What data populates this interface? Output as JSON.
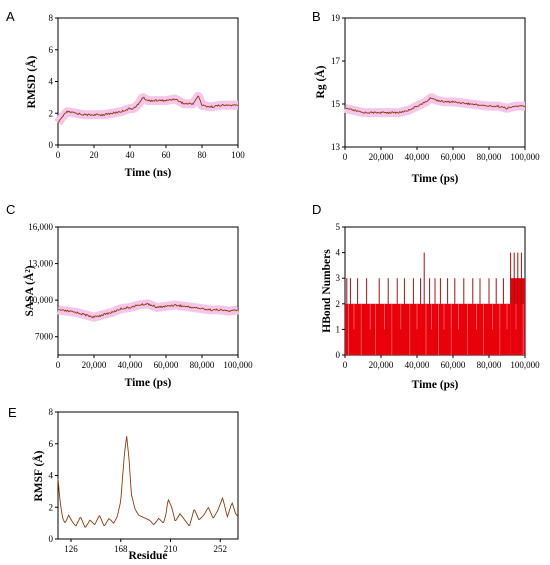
{
  "chart_data": [
    {
      "id": "A",
      "type": "line",
      "panel_label": "A",
      "xlabel": "Time (ns)",
      "ylabel": "RMSD (Å)",
      "xlim": [
        0,
        100
      ],
      "ylim": [
        0,
        8
      ],
      "xticks": [
        0,
        20,
        40,
        60,
        80,
        100
      ],
      "yticks": [
        0,
        2,
        4,
        6,
        8
      ],
      "xtick_labels": [
        "0",
        "20",
        "40",
        "60",
        "80",
        "100"
      ],
      "ytick_labels": [
        "0",
        "2",
        "4",
        "6",
        "8"
      ],
      "line_color": "#8b3a0e",
      "band_color": "#f5c6ea",
      "series": [
        {
          "x": [
            0,
            2,
            5,
            10,
            15,
            20,
            25,
            30,
            35,
            40,
            42,
            45,
            47,
            50,
            55,
            60,
            65,
            70,
            75,
            78,
            80,
            85,
            90,
            95,
            100
          ],
          "values": [
            1.4,
            1.7,
            2.1,
            2.0,
            1.9,
            1.9,
            1.9,
            2.0,
            2.1,
            2.3,
            2.3,
            2.6,
            3.0,
            2.8,
            2.8,
            2.8,
            2.9,
            2.6,
            2.6,
            3.1,
            2.5,
            2.4,
            2.5,
            2.5,
            2.5
          ]
        }
      ]
    },
    {
      "id": "B",
      "type": "line",
      "panel_label": "B",
      "xlabel": "Time (ps)",
      "ylabel": "Rg (Å)",
      "xlim": [
        0,
        100000
      ],
      "ylim": [
        13,
        19
      ],
      "xticks": [
        0,
        20000,
        40000,
        60000,
        80000,
        100000
      ],
      "yticks": [
        13,
        15,
        17,
        19
      ],
      "xtick_labels": [
        "0",
        "20,000",
        "40,000",
        "60,000",
        "80,000",
        "100,000"
      ],
      "ytick_labels": [
        "13",
        "15",
        "17",
        "19"
      ],
      "line_color": "#8b3a0e",
      "band_color": "#f5c6ea",
      "series": [
        {
          "x": [
            0,
            5000,
            10000,
            20000,
            30000,
            35000,
            40000,
            45000,
            48000,
            50000,
            55000,
            60000,
            70000,
            80000,
            85000,
            90000,
            95000,
            100000
          ],
          "values": [
            14.8,
            14.7,
            14.6,
            14.6,
            14.6,
            14.7,
            14.9,
            15.1,
            15.3,
            15.2,
            15.1,
            15.1,
            15.0,
            14.9,
            14.9,
            14.8,
            14.9,
            14.9
          ]
        }
      ]
    },
    {
      "id": "C",
      "type": "line",
      "panel_label": "C",
      "xlabel": "Time (ps)",
      "ylabel": "SASA (Å²)",
      "xlim": [
        0,
        100000
      ],
      "ylim": [
        5500,
        16000
      ],
      "xticks": [
        0,
        20000,
        40000,
        60000,
        80000,
        100000
      ],
      "yticks": [
        7000,
        10000,
        13000,
        16000
      ],
      "xtick_labels": [
        "0",
        "20,000",
        "40,000",
        "60,000",
        "80,000",
        "100,000"
      ],
      "ytick_labels": [
        "7000",
        "10,000",
        "13,000",
        "16,000"
      ],
      "line_color": "#8b3a0e",
      "band_color": "#f5c6ea",
      "series": [
        {
          "x": [
            0,
            5000,
            10000,
            15000,
            20000,
            25000,
            30000,
            35000,
            40000,
            45000,
            50000,
            55000,
            60000,
            65000,
            70000,
            75000,
            80000,
            85000,
            90000,
            95000,
            100000
          ],
          "values": [
            9200,
            9100,
            9000,
            8800,
            8600,
            8800,
            9000,
            9300,
            9400,
            9600,
            9700,
            9400,
            9500,
            9600,
            9500,
            9400,
            9300,
            9200,
            9200,
            9100,
            9200
          ]
        }
      ]
    },
    {
      "id": "D",
      "type": "bar",
      "panel_label": "D",
      "xlabel": "Time (ps)",
      "ylabel": "HBond Numbers",
      "xlim": [
        0,
        100000
      ],
      "ylim": [
        0,
        5
      ],
      "xticks": [
        0,
        20000,
        40000,
        60000,
        80000,
        100000
      ],
      "yticks": [
        0,
        1,
        2,
        3,
        4,
        5
      ],
      "xtick_labels": [
        "0",
        "20,000",
        "40,000",
        "60,000",
        "80,000",
        "100,000"
      ],
      "ytick_labels": [
        "0",
        "1",
        "2",
        "3",
        "4",
        "5"
      ],
      "bar_color": "#e8000b",
      "spike_color": "#a01010",
      "baseline": [
        {
          "from": 0,
          "to": 92000,
          "value": 2
        },
        {
          "from": 92000,
          "to": 100000,
          "value": 3
        }
      ],
      "spikes": [
        {
          "x": 1000,
          "value": 3
        },
        {
          "x": 3000,
          "value": 3
        },
        {
          "x": 7000,
          "value": 3
        },
        {
          "x": 12000,
          "value": 3
        },
        {
          "x": 19000,
          "value": 3
        },
        {
          "x": 24000,
          "value": 3
        },
        {
          "x": 29000,
          "value": 3
        },
        {
          "x": 33000,
          "value": 3
        },
        {
          "x": 38000,
          "value": 3
        },
        {
          "x": 42000,
          "value": 3
        },
        {
          "x": 44000,
          "value": 4
        },
        {
          "x": 47000,
          "value": 3
        },
        {
          "x": 50000,
          "value": 3
        },
        {
          "x": 53000,
          "value": 3
        },
        {
          "x": 57000,
          "value": 3
        },
        {
          "x": 61000,
          "value": 3
        },
        {
          "x": 66000,
          "value": 3
        },
        {
          "x": 71000,
          "value": 3
        },
        {
          "x": 75000,
          "value": 3
        },
        {
          "x": 80000,
          "value": 3
        },
        {
          "x": 84000,
          "value": 3
        },
        {
          "x": 88000,
          "value": 3
        },
        {
          "x": 92000,
          "value": 4
        },
        {
          "x": 94000,
          "value": 4
        },
        {
          "x": 96000,
          "value": 4
        },
        {
          "x": 98000,
          "value": 4
        }
      ],
      "dips": [
        {
          "x": 2000,
          "value": 0
        },
        {
          "x": 5000,
          "value": 1
        },
        {
          "x": 9000,
          "value": 0
        },
        {
          "x": 14000,
          "value": 1
        },
        {
          "x": 17000,
          "value": 0
        },
        {
          "x": 22000,
          "value": 1
        },
        {
          "x": 26000,
          "value": 0
        },
        {
          "x": 31000,
          "value": 1
        },
        {
          "x": 36000,
          "value": 0
        },
        {
          "x": 40000,
          "value": 1
        },
        {
          "x": 45000,
          "value": 0
        },
        {
          "x": 48000,
          "value": 1
        },
        {
          "x": 52000,
          "value": 0
        },
        {
          "x": 55000,
          "value": 1
        },
        {
          "x": 59000,
          "value": 0
        },
        {
          "x": 63000,
          "value": 1
        },
        {
          "x": 68000,
          "value": 0
        },
        {
          "x": 73000,
          "value": 1
        },
        {
          "x": 77000,
          "value": 0
        },
        {
          "x": 82000,
          "value": 1
        },
        {
          "x": 86000,
          "value": 0
        },
        {
          "x": 90000,
          "value": 1
        },
        {
          "x": 95000,
          "value": 1
        },
        {
          "x": 99000,
          "value": 0
        }
      ]
    },
    {
      "id": "E",
      "type": "line",
      "panel_label": "E",
      "xlabel": "Residue",
      "ylabel": "RMSF (Å)",
      "xlim": [
        115,
        267
      ],
      "ylim": [
        0,
        8
      ],
      "xticks": [
        126,
        168,
        210,
        252
      ],
      "yticks": [
        0,
        2,
        4,
        6,
        8
      ],
      "xtick_labels": [
        "126",
        "168",
        "210",
        "252"
      ],
      "ytick_labels": [
        "0",
        "2",
        "4",
        "6",
        "8"
      ],
      "line_color": "#8b3a0e",
      "series": [
        {
          "x": [
            115,
            117,
            119,
            121,
            124,
            127,
            130,
            134,
            138,
            142,
            146,
            150,
            154,
            158,
            162,
            165,
            168,
            171,
            173,
            175,
            177,
            180,
            183,
            186,
            189,
            192,
            196,
            200,
            204,
            206,
            208,
            211,
            214,
            218,
            222,
            226,
            230,
            234,
            238,
            242,
            246,
            250,
            254,
            258,
            262,
            265,
            267
          ],
          "values": [
            3.8,
            2.2,
            1.3,
            1.0,
            1.5,
            1.1,
            0.8,
            1.4,
            0.7,
            1.2,
            0.9,
            1.5,
            0.8,
            1.3,
            1.0,
            1.4,
            2.4,
            5.3,
            6.5,
            5.0,
            2.8,
            1.9,
            1.5,
            1.4,
            1.3,
            1.2,
            0.9,
            1.3,
            1.0,
            1.5,
            2.5,
            2.0,
            1.1,
            1.6,
            1.2,
            0.8,
            1.9,
            1.2,
            1.5,
            2.0,
            1.3,
            1.8,
            2.6,
            1.4,
            2.3,
            1.6,
            1.4
          ]
        }
      ]
    }
  ]
}
